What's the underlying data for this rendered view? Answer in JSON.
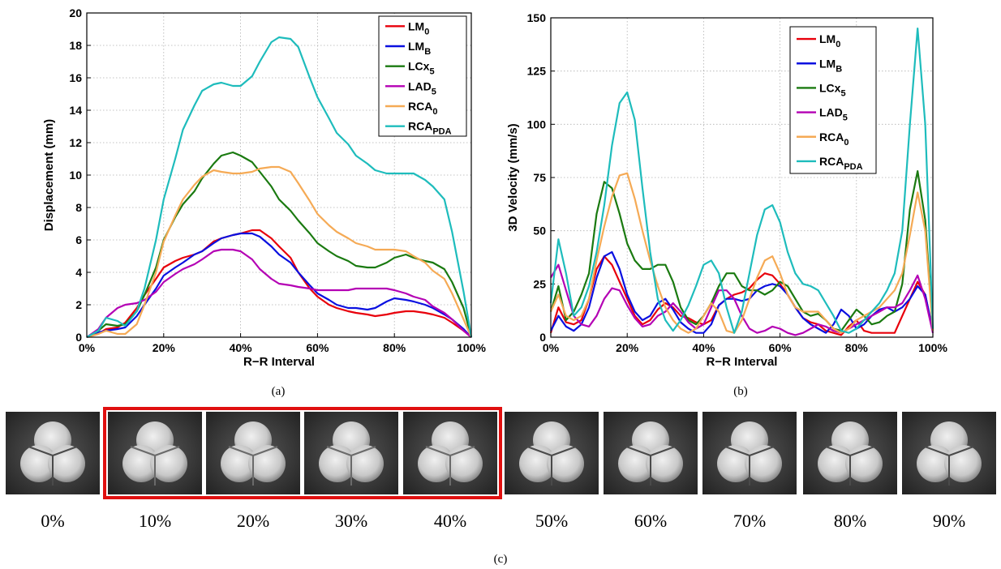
{
  "panel_labels": [
    "(a)",
    "(b)",
    "(c)"
  ],
  "colors": {
    "LM0": "#e8000b",
    "LMB": "#0a10e0",
    "LCx5": "#1a7a10",
    "LAD5": "#b400b4",
    "RCA0": "#f5aa55",
    "RCAPDA": "#1ebcbc",
    "highlight_box": "#e01010"
  },
  "chart_data": [
    {
      "type": "line",
      "xlabel": "R−R Interval",
      "ylabel": "Displacement (mm)",
      "xlim": [
        0,
        100
      ],
      "ylim": [
        0,
        20
      ],
      "x_ticks": [
        "0%",
        "20%",
        "40%",
        "60%",
        "80%",
        "100%"
      ],
      "y_ticks": [
        "0",
        "2",
        "4",
        "6",
        "8",
        "10",
        "12",
        "14",
        "16",
        "18",
        "20"
      ],
      "grid": true,
      "legend_position": "top-right",
      "x": [
        0,
        3,
        5,
        8,
        10,
        13,
        15,
        18,
        20,
        23,
        25,
        28,
        30,
        33,
        35,
        38,
        40,
        43,
        45,
        48,
        50,
        53,
        55,
        58,
        60,
        63,
        65,
        68,
        70,
        73,
        75,
        78,
        80,
        83,
        85,
        88,
        90,
        93,
        95,
        98,
        100
      ],
      "series": [
        {
          "key": "LM0",
          "label_main": "LM",
          "label_sub": "0",
          "values": [
            0,
            0.2,
            0.5,
            0.6,
            0.9,
            1.8,
            2.6,
            3.6,
            4.3,
            4.7,
            4.9,
            5.1,
            5.3,
            5.9,
            6.1,
            6.3,
            6.4,
            6.6,
            6.6,
            6.1,
            5.6,
            4.9,
            4.0,
            3.0,
            2.5,
            2.0,
            1.8,
            1.6,
            1.5,
            1.4,
            1.3,
            1.4,
            1.5,
            1.6,
            1.6,
            1.5,
            1.4,
            1.2,
            0.9,
            0.4,
            0
          ]
        },
        {
          "key": "LMB",
          "label_main": "LM",
          "label_sub": "B",
          "values": [
            0,
            0.3,
            0.4,
            0.5,
            0.6,
            1.3,
            2.0,
            3.0,
            3.8,
            4.3,
            4.6,
            5.1,
            5.3,
            5.8,
            6.1,
            6.3,
            6.4,
            6.4,
            6.2,
            5.6,
            5.1,
            4.6,
            4.0,
            3.2,
            2.7,
            2.3,
            2.0,
            1.8,
            1.8,
            1.7,
            1.8,
            2.2,
            2.4,
            2.3,
            2.2,
            2.0,
            1.8,
            1.4,
            1.1,
            0.5,
            0
          ]
        },
        {
          "key": "LCx5",
          "label_main": "LCx",
          "label_sub": "5",
          "values": [
            0,
            0.4,
            0.8,
            0.7,
            0.8,
            1.6,
            2.6,
            4.3,
            6.0,
            7.4,
            8.2,
            9.0,
            9.8,
            10.7,
            11.2,
            11.4,
            11.2,
            10.8,
            10.2,
            9.3,
            8.5,
            7.8,
            7.2,
            6.4,
            5.8,
            5.3,
            5.0,
            4.7,
            4.4,
            4.3,
            4.3,
            4.6,
            4.9,
            5.1,
            4.9,
            4.7,
            4.6,
            4.2,
            3.4,
            1.8,
            0
          ]
        },
        {
          "key": "LAD5",
          "label_main": "LAD",
          "label_sub": "5",
          "values": [
            0,
            0.5,
            1.2,
            1.8,
            2.0,
            2.1,
            2.3,
            2.8,
            3.4,
            3.9,
            4.2,
            4.5,
            4.8,
            5.3,
            5.4,
            5.4,
            5.3,
            4.8,
            4.2,
            3.6,
            3.3,
            3.2,
            3.1,
            3.0,
            2.9,
            2.9,
            2.9,
            2.9,
            3.0,
            3.0,
            3.0,
            3.0,
            2.9,
            2.7,
            2.5,
            2.3,
            1.9,
            1.5,
            1.1,
            0.4,
            0
          ]
        },
        {
          "key": "RCA0",
          "label_main": "RCA",
          "label_sub": "0",
          "values": [
            0,
            0.2,
            0.4,
            0.2,
            0.2,
            0.8,
            2.0,
            4.0,
            5.9,
            7.5,
            8.5,
            9.4,
            9.9,
            10.3,
            10.2,
            10.1,
            10.1,
            10.2,
            10.4,
            10.5,
            10.5,
            10.2,
            9.5,
            8.4,
            7.6,
            6.9,
            6.5,
            6.1,
            5.8,
            5.6,
            5.4,
            5.4,
            5.4,
            5.3,
            5.0,
            4.6,
            4.1,
            3.6,
            2.7,
            1.1,
            0
          ]
        },
        {
          "key": "RCAPDA",
          "label_main": "RCA",
          "label_sub": "PDA",
          "values": [
            0,
            0.4,
            1.2,
            1.0,
            0.7,
            1.6,
            3.0,
            6.0,
            8.5,
            11.0,
            12.8,
            14.3,
            15.2,
            15.6,
            15.7,
            15.5,
            15.5,
            16.1,
            17.0,
            18.2,
            18.5,
            18.4,
            17.9,
            16.0,
            14.8,
            13.5,
            12.6,
            11.9,
            11.2,
            10.7,
            10.3,
            10.1,
            10.1,
            10.1,
            10.1,
            9.7,
            9.3,
            8.5,
            6.5,
            2.8,
            0
          ]
        }
      ]
    },
    {
      "type": "line",
      "xlabel": "R−R Interval",
      "ylabel": "3D Velocity (mm/s)",
      "xlim": [
        0,
        100
      ],
      "ylim": [
        0,
        150
      ],
      "x_ticks": [
        "0%",
        "20%",
        "40%",
        "60%",
        "80%",
        "100%"
      ],
      "y_ticks": [
        "0",
        "25",
        "50",
        "75",
        "100",
        "125",
        "150"
      ],
      "grid": true,
      "legend_position": "top-right",
      "x": [
        0,
        2,
        4,
        6,
        8,
        10,
        12,
        14,
        16,
        18,
        20,
        22,
        24,
        26,
        28,
        30,
        32,
        34,
        36,
        38,
        40,
        42,
        44,
        46,
        48,
        50,
        52,
        54,
        56,
        58,
        60,
        62,
        64,
        66,
        68,
        70,
        72,
        74,
        76,
        78,
        80,
        82,
        84,
        86,
        88,
        90,
        92,
        94,
        96,
        98,
        100
      ],
      "series": [
        {
          "key": "LM0",
          "label_main": "LM",
          "label_sub": "0",
          "values": [
            2,
            14,
            7,
            6,
            8,
            18,
            32,
            38,
            34,
            26,
            18,
            10,
            6,
            8,
            13,
            16,
            14,
            10,
            9,
            7,
            6,
            8,
            15,
            18,
            20,
            21,
            23,
            27,
            30,
            29,
            25,
            20,
            14,
            9,
            7,
            6,
            3,
            2,
            1,
            5,
            8,
            3,
            2,
            2,
            2,
            2,
            10,
            18,
            26,
            20,
            3
          ]
        },
        {
          "key": "LMB",
          "label_main": "LM",
          "label_sub": "B",
          "values": [
            3,
            10,
            5,
            3,
            6,
            14,
            28,
            38,
            40,
            32,
            20,
            12,
            8,
            10,
            16,
            18,
            13,
            7,
            4,
            2,
            2,
            6,
            15,
            18,
            18,
            17,
            18,
            22,
            24,
            25,
            24,
            20,
            14,
            9,
            6,
            4,
            2,
            6,
            13,
            10,
            4,
            6,
            10,
            13,
            14,
            12,
            14,
            18,
            24,
            20,
            3
          ]
        },
        {
          "key": "LCx5",
          "label_main": "LCx",
          "label_sub": "5",
          "values": [
            12,
            24,
            8,
            12,
            20,
            30,
            58,
            73,
            70,
            58,
            44,
            36,
            32,
            32,
            34,
            34,
            26,
            14,
            8,
            6,
            10,
            16,
            24,
            30,
            30,
            24,
            22,
            22,
            20,
            22,
            26,
            24,
            18,
            12,
            10,
            11,
            8,
            4,
            3,
            8,
            13,
            10,
            6,
            7,
            10,
            12,
            25,
            60,
            78,
            55,
            3
          ]
        },
        {
          "key": "LAD5",
          "label_main": "LAD",
          "label_sub": "5",
          "values": [
            28,
            34,
            22,
            10,
            6,
            5,
            10,
            18,
            23,
            22,
            15,
            9,
            5,
            6,
            10,
            12,
            16,
            12,
            7,
            4,
            6,
            14,
            22,
            22,
            18,
            10,
            4,
            2,
            3,
            5,
            4,
            2,
            1,
            2,
            4,
            6,
            5,
            3,
            2,
            4,
            6,
            8,
            10,
            12,
            14,
            14,
            16,
            22,
            29,
            18,
            2
          ]
        },
        {
          "key": "RCA0",
          "label_main": "RCA",
          "label_sub": "0",
          "values": [
            12,
            20,
            10,
            8,
            10,
            18,
            36,
            52,
            66,
            76,
            77,
            65,
            50,
            36,
            24,
            14,
            8,
            4,
            2,
            4,
            10,
            16,
            12,
            3,
            2,
            8,
            18,
            28,
            36,
            38,
            30,
            20,
            14,
            12,
            12,
            12,
            8,
            4,
            2,
            4,
            8,
            10,
            12,
            14,
            18,
            22,
            30,
            48,
            68,
            50,
            3
          ]
        },
        {
          "key": "RCAPDA",
          "label_main": "RCA",
          "label_sub": "PDA",
          "values": [
            16,
            46,
            30,
            10,
            14,
            24,
            40,
            62,
            90,
            110,
            115,
            102,
            70,
            40,
            18,
            8,
            3,
            8,
            15,
            24,
            34,
            36,
            30,
            14,
            2,
            12,
            30,
            48,
            60,
            62,
            54,
            40,
            30,
            25,
            24,
            22,
            16,
            10,
            3,
            2,
            4,
            8,
            12,
            16,
            22,
            30,
            50,
            100,
            145,
            100,
            4
          ]
        }
      ]
    }
  ],
  "image_strip": {
    "frames": [
      {
        "label": "0%",
        "highlighted": false
      },
      {
        "label": "10%",
        "highlighted": true
      },
      {
        "label": "20%",
        "highlighted": true
      },
      {
        "label": "30%",
        "highlighted": true
      },
      {
        "label": "40%",
        "highlighted": true
      },
      {
        "label": "50%",
        "highlighted": false
      },
      {
        "label": "60%",
        "highlighted": false
      },
      {
        "label": "70%",
        "highlighted": false
      },
      {
        "label": "80%",
        "highlighted": false
      },
      {
        "label": "90%",
        "highlighted": false
      }
    ]
  }
}
